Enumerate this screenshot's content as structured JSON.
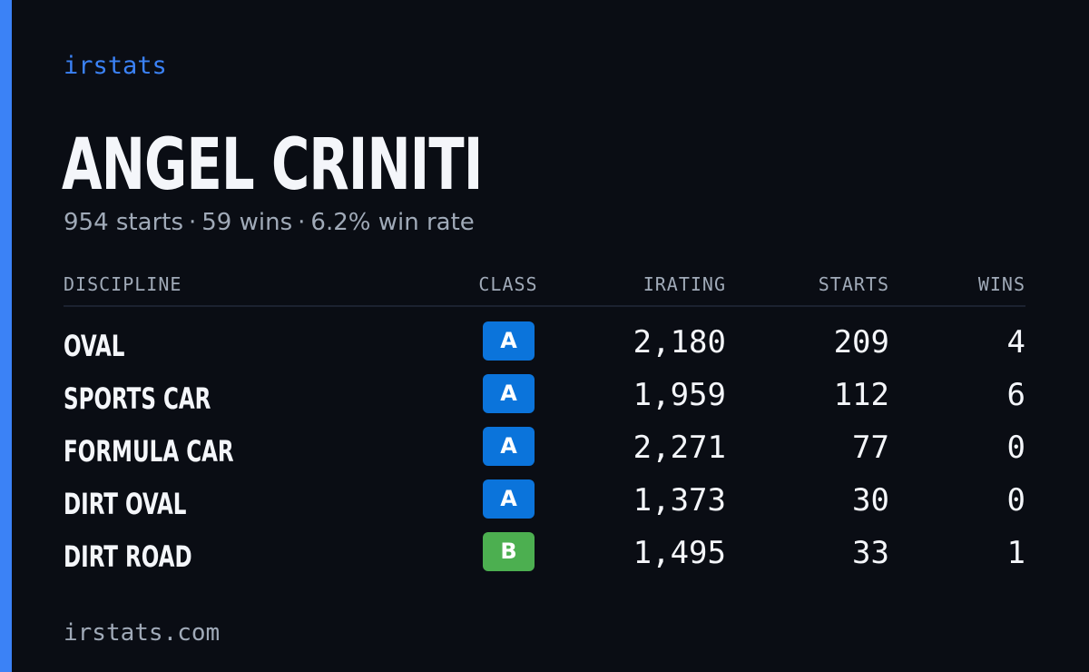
{
  "brand": "irstats",
  "driver": {
    "name": "ANGEL CRINITI",
    "summary": {
      "starts": "954 starts",
      "wins": "59 wins",
      "win_rate": "6.2% win rate",
      "separator": "·"
    }
  },
  "table": {
    "headers": {
      "discipline": "DISCIPLINE",
      "class": "CLASS",
      "irating": "IRATING",
      "starts": "STARTS",
      "wins": "WINS"
    },
    "rows": [
      {
        "discipline": "OVAL",
        "class": "A",
        "class_color": "#0b74db",
        "irating": "2,180",
        "starts": "209",
        "wins": "4"
      },
      {
        "discipline": "SPORTS CAR",
        "class": "A",
        "class_color": "#0b74db",
        "irating": "1,959",
        "starts": "112",
        "wins": "6"
      },
      {
        "discipline": "FORMULA CAR",
        "class": "A",
        "class_color": "#0b74db",
        "irating": "2,271",
        "starts": "77",
        "wins": "0"
      },
      {
        "discipline": "DIRT OVAL",
        "class": "A",
        "class_color": "#0b74db",
        "irating": "1,373",
        "starts": "30",
        "wins": "0"
      },
      {
        "discipline": "DIRT ROAD",
        "class": "B",
        "class_color": "#4caf50",
        "irating": "1,495",
        "starts": "33",
        "wins": "1"
      }
    ]
  },
  "footer": "irstats.com",
  "colors": {
    "accent": "#3b82f6",
    "background": "#0a0d14",
    "muted": "#a0aab8"
  }
}
